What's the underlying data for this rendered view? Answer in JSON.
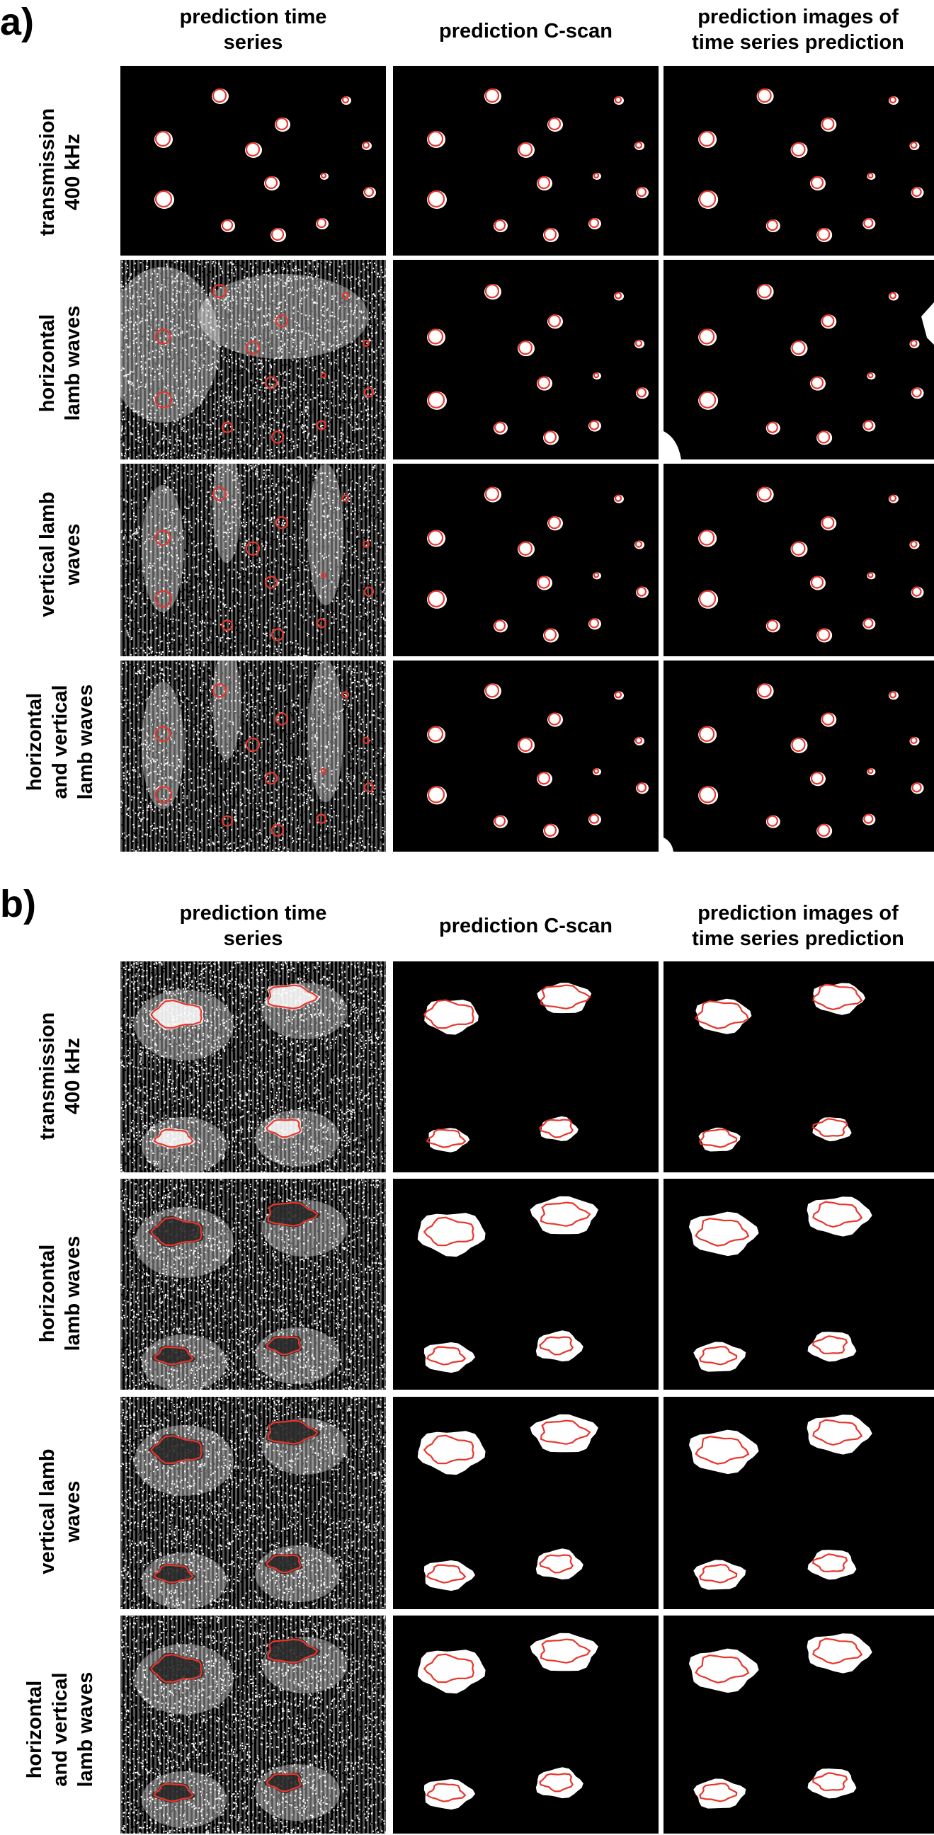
{
  "panels": [
    {
      "letter": "a)",
      "columns": [
        "prediction time\nseries",
        "prediction C-scan",
        "prediction images of\ntime series prediction"
      ],
      "rows": [
        "transmission\n400 kHz",
        "horizontal\nlamb waves",
        "vertical lamb\nwaves",
        "horizontal\nand vertical\nlamb waves"
      ]
    },
    {
      "letter": "b)",
      "columns": [
        "prediction time\nseries",
        "prediction C-scan",
        "prediction images of\ntime series prediction"
      ],
      "rows": [
        "transmission\n400 kHz",
        "horizontal\nlamb waves",
        "vertical lamb\nwaves",
        "horizontal\nand vertical\nlamb waves"
      ]
    }
  ],
  "colors": {
    "outline": "#e8362c",
    "defect": "#ffffff",
    "background": "#000000"
  }
}
